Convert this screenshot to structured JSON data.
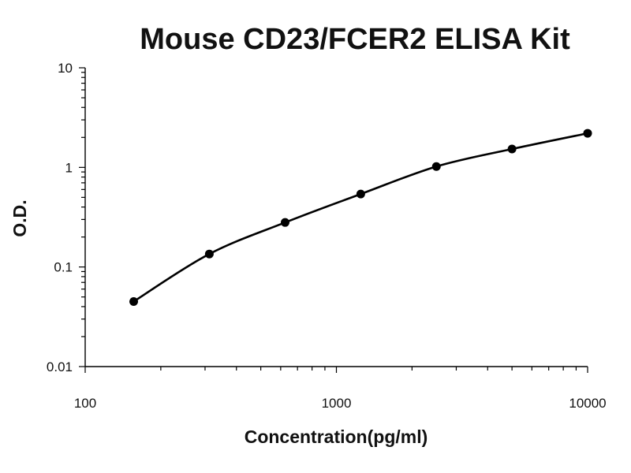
{
  "chart_data": {
    "type": "line",
    "title": "Mouse CD23/FCER2 ELISA Kit",
    "xlabel": "Concentration(pg/ml)",
    "ylabel": "O.D.",
    "x_scale": "log",
    "y_scale": "log",
    "xlim": [
      100,
      10000
    ],
    "ylim": [
      0.01,
      10
    ],
    "x_ticks": [
      "100",
      "1000",
      "10000"
    ],
    "y_ticks": [
      "0.01",
      "0.1",
      "1",
      "10"
    ],
    "grid": false,
    "legend": "none",
    "series": [
      {
        "marker": "circle",
        "line": "smooth fitted curve",
        "color": "#000000",
        "x": [
          156,
          312,
          625,
          1250,
          2500,
          5000,
          10000
        ],
        "y": [
          0.045,
          0.135,
          0.28,
          0.54,
          1.02,
          1.53,
          2.2
        ]
      }
    ]
  }
}
